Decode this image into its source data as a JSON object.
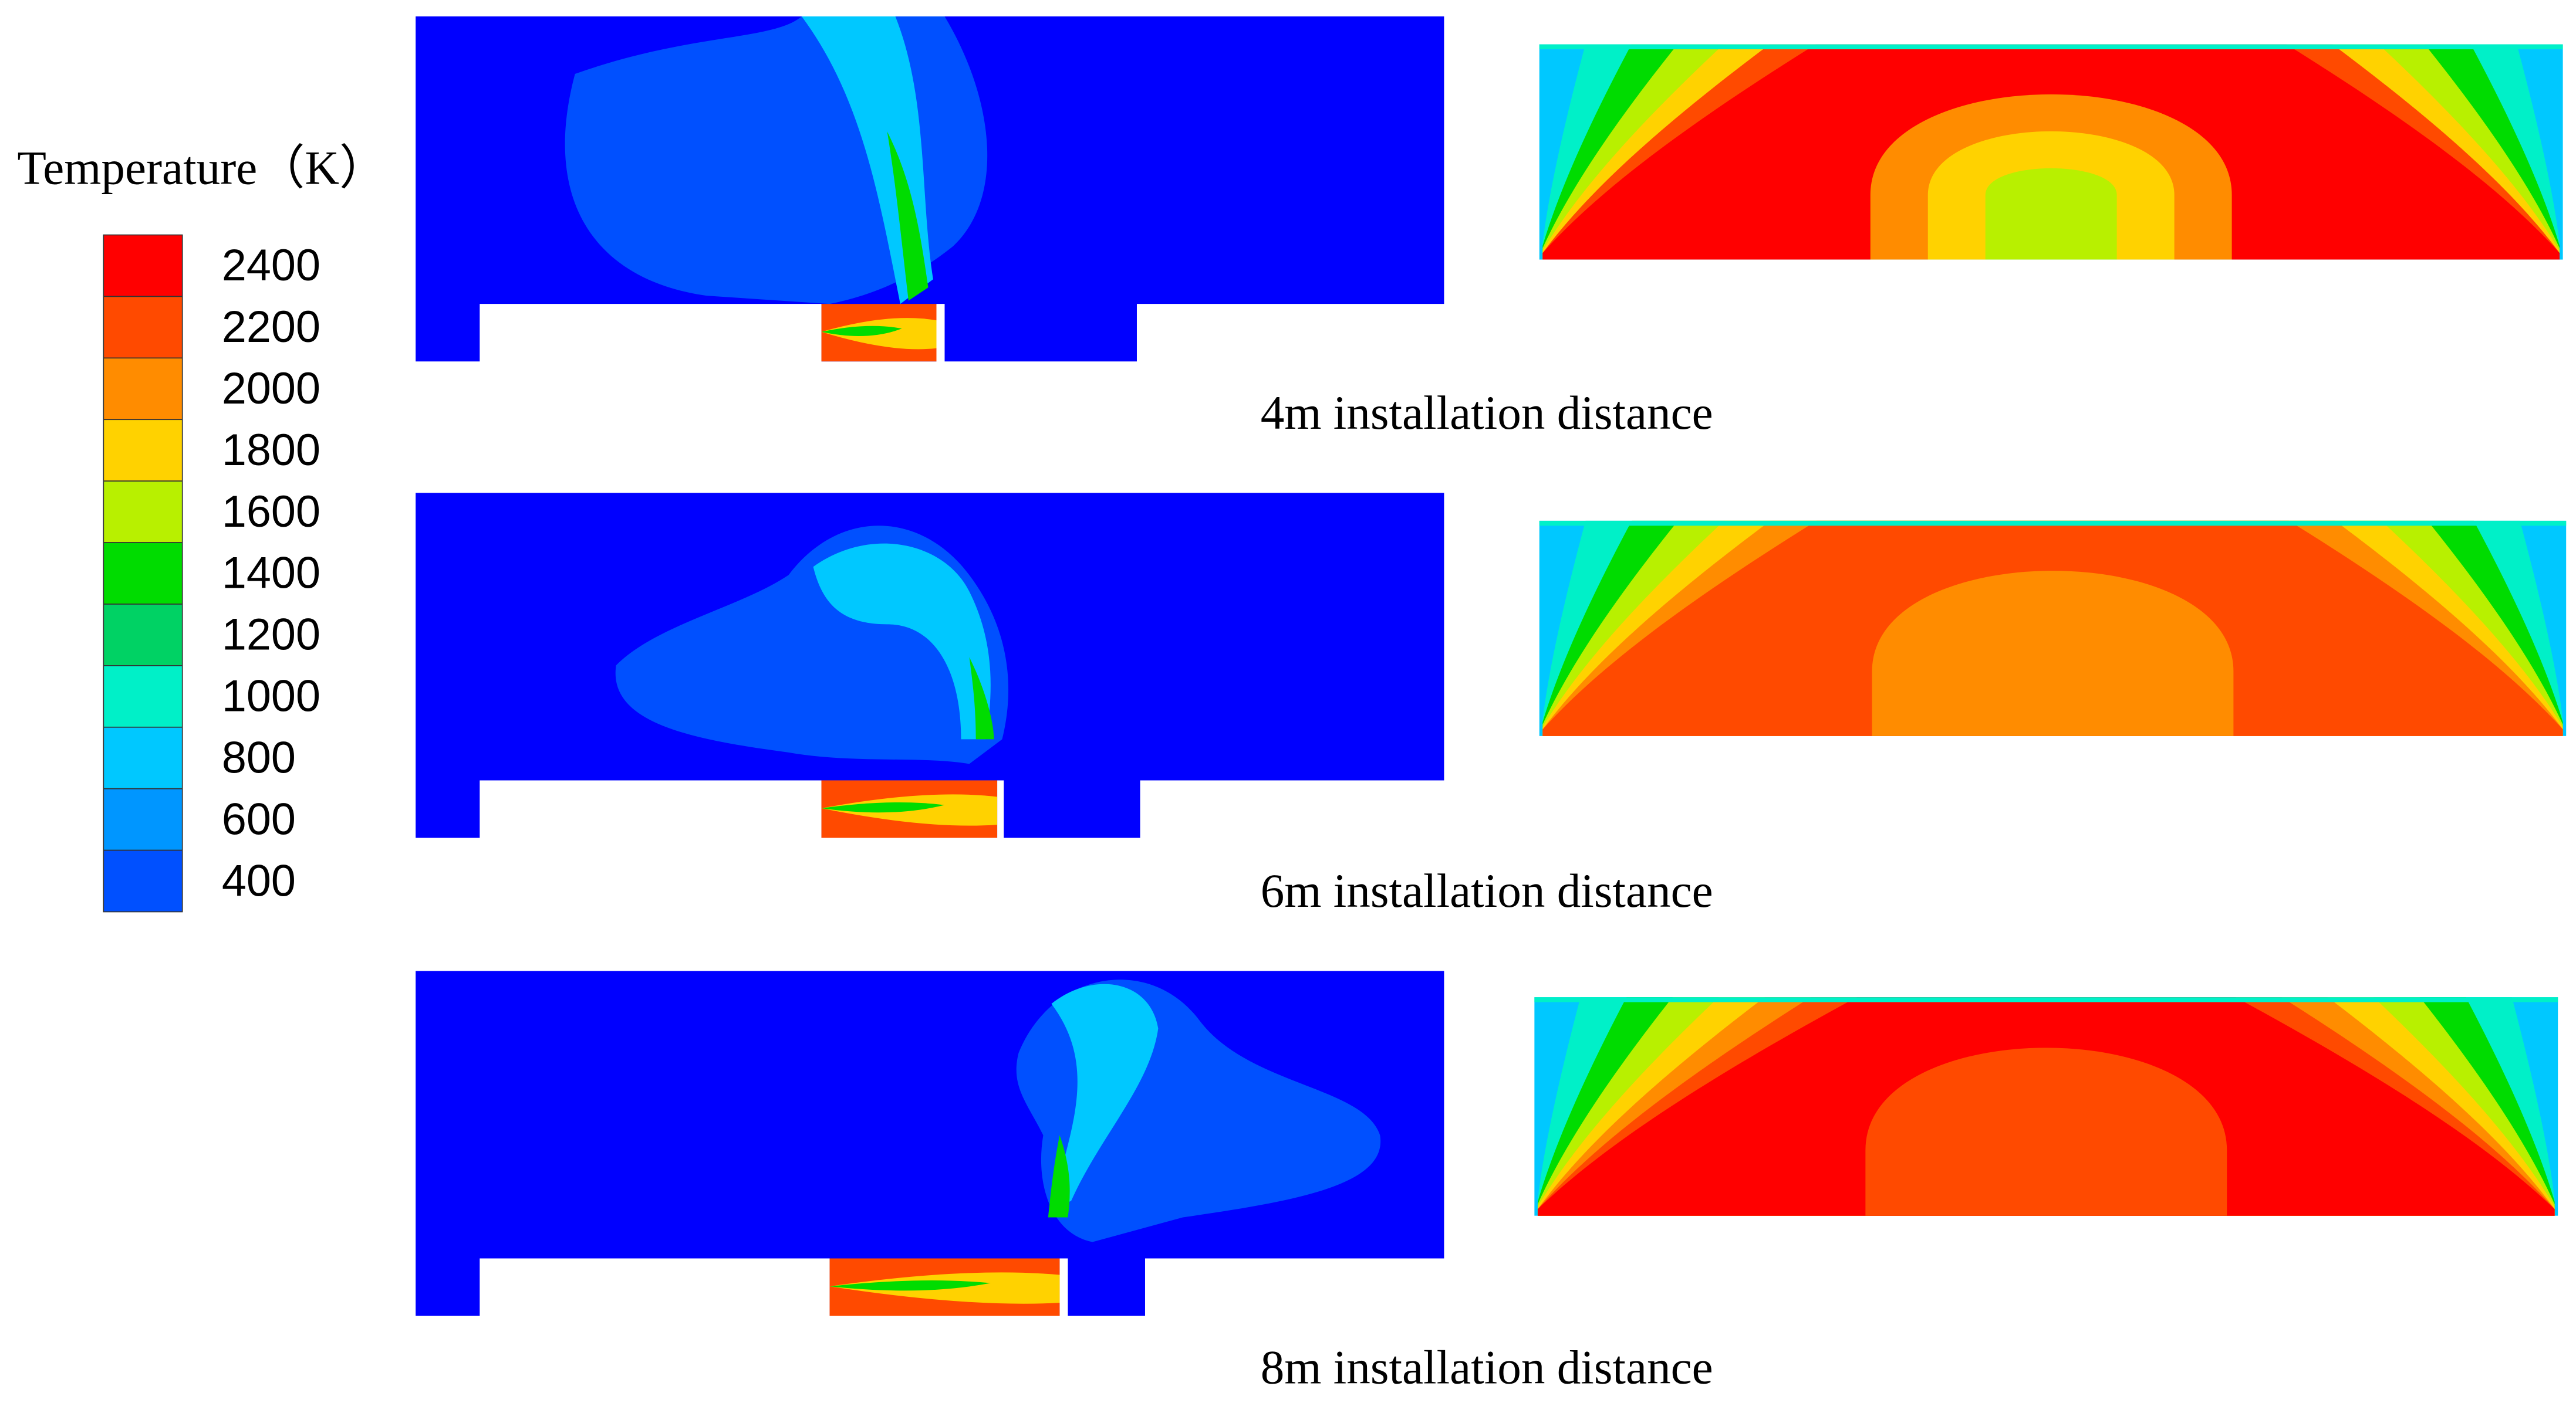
{
  "legend": {
    "title": "Temperature（K）",
    "levels": [
      {
        "label": 2400,
        "color": "#ff0000"
      },
      {
        "label": 2200,
        "color": "#ff4a00"
      },
      {
        "label": 2000,
        "color": "#ff8c00"
      },
      {
        "label": 1800,
        "color": "#ffd200"
      },
      {
        "label": 1600,
        "color": "#b8f000"
      },
      {
        "label": 1400,
        "color": "#00dc00"
      },
      {
        "label": 1200,
        "color": "#00d264"
      },
      {
        "label": 1000,
        "color": "#00f0c8"
      },
      {
        "label": 800,
        "color": "#00c8ff"
      },
      {
        "label": 600,
        "color": "#0096ff"
      },
      {
        "label": 400,
        "color": "#0050ff"
      }
    ],
    "base_color": "#0000ff"
  },
  "panels": [
    {
      "caption": "4m installation distance"
    },
    {
      "caption": "6m installation distance"
    },
    {
      "caption": "8m installation distance"
    }
  ]
}
